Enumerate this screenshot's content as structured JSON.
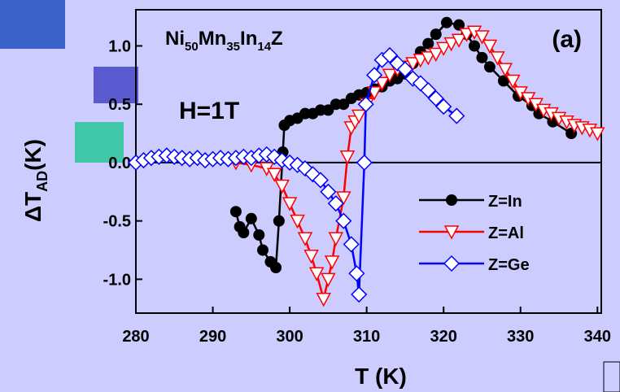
{
  "chart_data": {
    "type": "line",
    "title": [
      "Ni",
      "50",
      "Mn",
      "35",
      "In",
      "14",
      "Z"
    ],
    "annotations": [
      "H=1T",
      "(a)"
    ],
    "x_label": "T (K)",
    "y_label": [
      "ΔT",
      "AD",
      "(K)"
    ],
    "xlim": [
      280,
      340.5
    ],
    "ylim": [
      -1.29,
      1.31
    ],
    "xticks": [
      280,
      290,
      300,
      310,
      320,
      330,
      340
    ],
    "yticks": [
      {
        "value": -1,
        "label": "-1.0"
      },
      {
        "value": -0.5,
        "label": "-0.5"
      },
      {
        "value": 0,
        "label": "0.0"
      },
      {
        "value": 0.5,
        "label": "0.5"
      },
      {
        "value": 1,
        "label": "1.0"
      }
    ],
    "zero_line": true,
    "series": [
      {
        "name": "Z=In",
        "color": "#000000",
        "marker": "circle",
        "x": [
          293,
          293.5,
          294,
          295,
          296,
          296.5,
          297.5,
          298.2,
          298.6,
          299.1,
          299.3,
          300,
          301,
          302,
          303,
          304,
          305,
          306,
          307,
          308,
          309,
          310,
          311,
          312,
          313,
          314,
          315,
          316,
          317,
          318,
          319,
          320.4,
          322,
          323,
          324,
          325,
          326,
          327.8,
          329.7,
          331.5,
          332.4,
          334.2,
          336.6
        ],
        "values": [
          -0.42,
          -0.55,
          -0.6,
          -0.48,
          -0.62,
          -0.75,
          -0.85,
          -0.9,
          -0.5,
          0.09,
          0.32,
          0.36,
          0.38,
          0.42,
          0.42,
          0.45,
          0.45,
          0.5,
          0.5,
          0.55,
          0.58,
          0.6,
          0.63,
          0.65,
          0.7,
          0.72,
          0.76,
          0.85,
          0.95,
          1.02,
          1.1,
          1.2,
          1.18,
          1.1,
          1.0,
          0.9,
          0.82,
          0.7,
          0.57,
          0.49,
          0.42,
          0.35,
          0.25
        ]
      },
      {
        "name": "Z=Al",
        "color": "#ff0000",
        "marker": "triangle-down",
        "x": [
          293,
          295,
          297,
          298,
          299,
          300,
          301,
          302,
          302.8,
          303.5,
          304.4,
          305,
          305.5,
          306,
          307,
          307.5,
          308,
          308.5,
          309,
          310,
          311,
          312,
          313,
          314,
          315,
          316,
          317,
          318,
          319,
          320,
          321,
          322,
          323,
          324,
          325,
          326,
          327,
          328,
          329,
          330,
          331,
          332,
          333,
          334,
          335,
          336,
          337,
          338,
          339,
          340
        ],
        "values": [
          0.0,
          -0.02,
          -0.05,
          -0.1,
          -0.2,
          -0.35,
          -0.5,
          -0.65,
          -0.8,
          -0.95,
          -1.17,
          -1.0,
          -0.85,
          -0.65,
          -0.3,
          0.05,
          0.3,
          0.35,
          0.4,
          0.5,
          0.6,
          0.68,
          0.75,
          0.8,
          0.82,
          0.85,
          0.88,
          0.9,
          0.93,
          0.98,
          1.02,
          1.05,
          1.1,
          1.12,
          1.08,
          1.0,
          0.9,
          0.8,
          0.7,
          0.6,
          0.55,
          0.5,
          0.45,
          0.42,
          0.38,
          0.35,
          0.32,
          0.3,
          0.28,
          0.25
        ]
      },
      {
        "name": "Z=Ge",
        "color": "#0000ff",
        "marker": "diamond",
        "x": [
          280,
          281,
          282,
          283,
          284,
          285,
          286,
          287,
          288,
          289,
          290,
          291,
          292,
          293,
          294,
          295,
          296,
          297,
          298,
          299,
          300,
          301,
          302,
          303,
          304,
          305,
          306,
          307,
          308,
          308.7,
          309,
          309.7,
          309.9,
          311,
          312,
          313,
          314,
          315,
          316,
          317,
          318,
          319,
          320,
          321.7
        ],
        "values": [
          0.0,
          0.02,
          0.04,
          0.05,
          0.06,
          0.05,
          0.04,
          0.03,
          0.04,
          0.02,
          0.03,
          0.04,
          0.03,
          0.04,
          0.05,
          0.04,
          0.06,
          0.07,
          0.05,
          0.02,
          0.0,
          -0.02,
          -0.05,
          -0.1,
          -0.15,
          -0.25,
          -0.35,
          -0.5,
          -0.7,
          -0.95,
          -1.13,
          0.0,
          0.5,
          0.75,
          0.88,
          0.92,
          0.85,
          0.8,
          0.72,
          0.68,
          0.62,
          0.55,
          0.48,
          0.4
        ]
      }
    ]
  }
}
